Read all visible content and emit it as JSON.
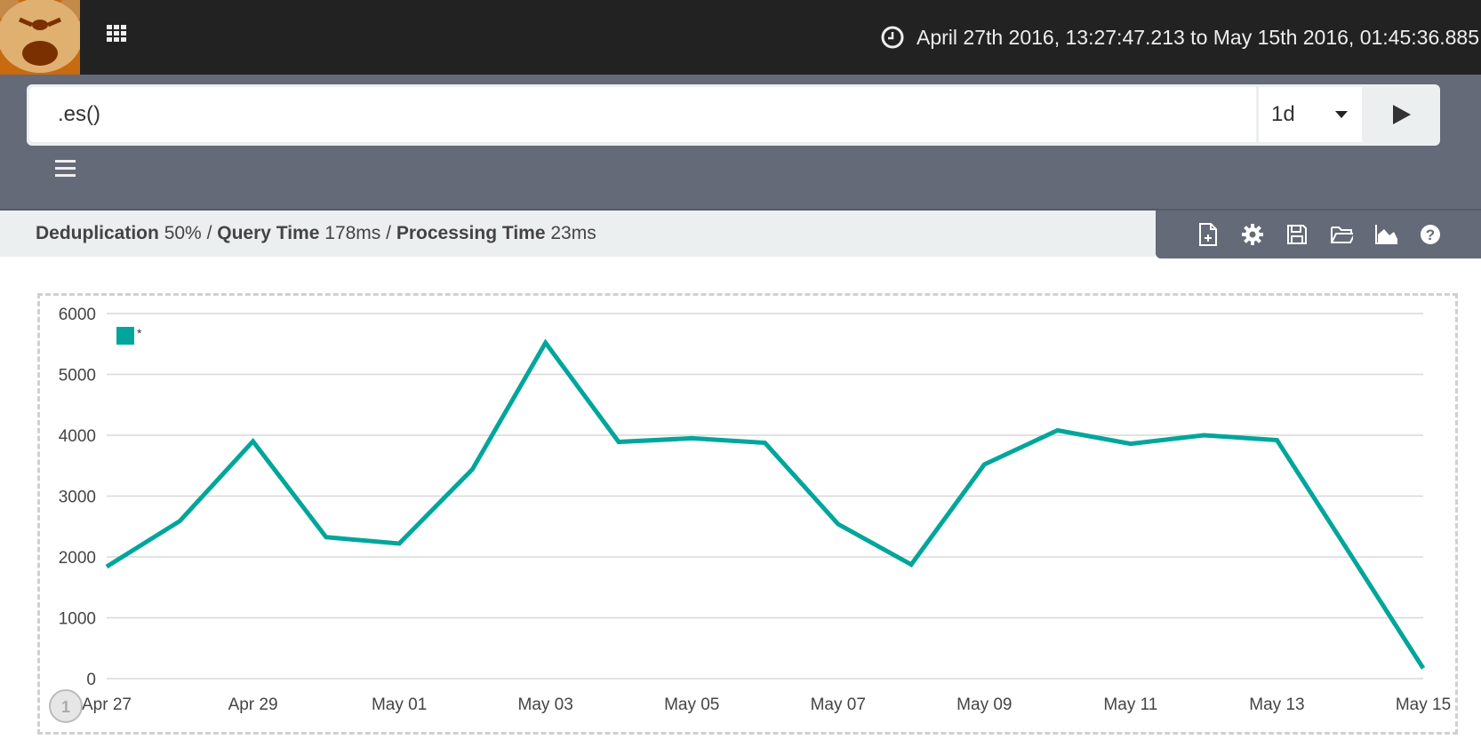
{
  "header": {
    "time_range": "April 27th 2016, 13:27:47.213 to May 15th 2016, 01:45:36.885"
  },
  "query": {
    "expression": ".es()",
    "interval": "1d"
  },
  "stats": {
    "dedup_label": "Deduplication",
    "dedup_value": "50%",
    "sep": "/",
    "query_label": "Query Time",
    "query_value": "178ms",
    "proc_label": "Processing Time",
    "proc_value": "23ms"
  },
  "toolbar": {
    "icons": [
      "new-sheet-icon",
      "gear-icon",
      "save-icon",
      "open-folder-icon",
      "area-chart-icon",
      "help-icon"
    ]
  },
  "colors": {
    "series": "#00a69b",
    "header": "#222222",
    "bar": "#646a77"
  },
  "chart_data": {
    "type": "line",
    "x": [
      "Apr 27",
      "Apr 28",
      "Apr 29",
      "Apr 30",
      "May 01",
      "May 02",
      "May 03",
      "May 04",
      "May 05",
      "May 06",
      "May 07",
      "May 08",
      "May 09",
      "May 10",
      "May 11",
      "May 12",
      "May 13",
      "May 14",
      "May 15"
    ],
    "xticks": [
      "Apr 27",
      "Apr 29",
      "May 01",
      "May 03",
      "May 05",
      "May 07",
      "May 09",
      "May 11",
      "May 13",
      "May 15"
    ],
    "yticks": [
      "0",
      "1000",
      "2000",
      "3000",
      "4000",
      "5000",
      "6000"
    ],
    "ylim": [
      0,
      6000
    ],
    "grid": true,
    "legend_position": "top-left",
    "series": [
      {
        "name": "*",
        "values": [
          1840,
          2590,
          3900,
          2325,
          2220,
          3440,
          5520,
          3890,
          3950,
          3875,
          2540,
          1875,
          3520,
          4080,
          3860,
          4000,
          3920,
          2050,
          170
        ]
      }
    ],
    "page_badge": "1"
  }
}
